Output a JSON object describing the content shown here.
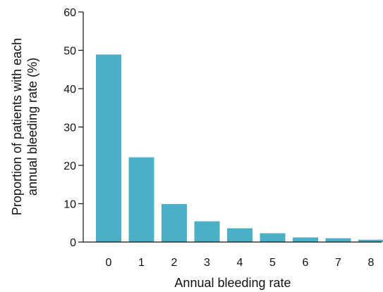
{
  "chart_data": {
    "type": "bar",
    "categories": [
      "0",
      "1",
      "2",
      "3",
      "4",
      "5",
      "6",
      "7",
      "8"
    ],
    "values": [
      48.9,
      22.1,
      9.9,
      5.4,
      3.6,
      2.3,
      1.2,
      1.0,
      0.6
    ],
    "xlabel": "Annual bleeding rate",
    "ylabel_lines": [
      "Proportion of patients with each",
      "annual bleeding rate (%)"
    ],
    "yticks": [
      "0",
      "10",
      "20",
      "30",
      "40",
      "50",
      "60"
    ],
    "ylim": [
      0,
      60
    ],
    "grid": false,
    "legend": "none",
    "colors": {
      "bar": "#4bafc6",
      "axis": "#111111"
    }
  }
}
